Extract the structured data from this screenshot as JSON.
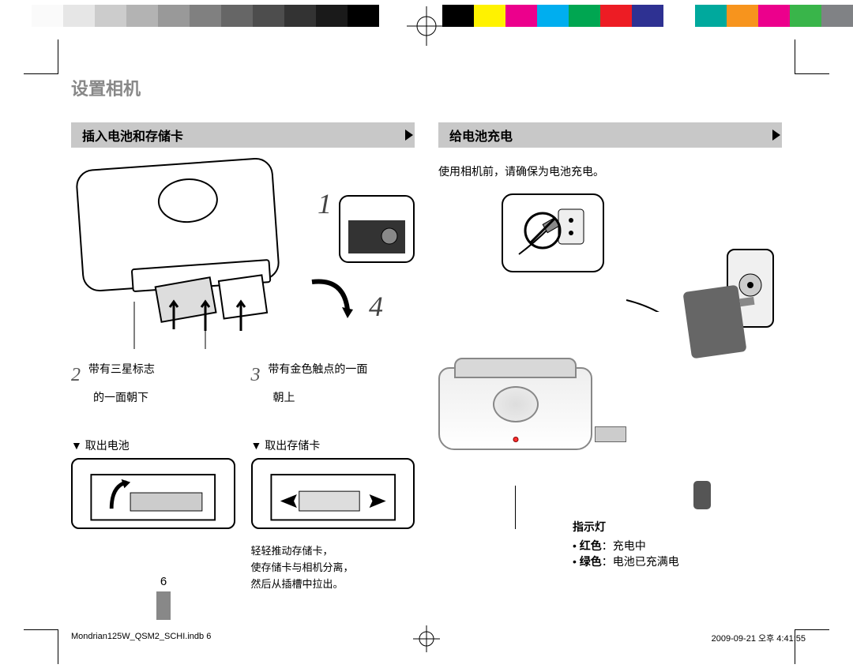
{
  "colorbar": {
    "grayscale": [
      "#ffffff",
      "#fafafa",
      "#e6e6e6",
      "#cccccc",
      "#b3b3b3",
      "#999999",
      "#808080",
      "#666666",
      "#4d4d4d",
      "#333333",
      "#1a1a1a",
      "#000000",
      "#ffffff"
    ],
    "colors": [
      "#000000",
      "#fff200",
      "#ec008c",
      "#00aeef",
      "#00a651",
      "#ed1c24",
      "#2e3192",
      "#ffffff",
      "#00a99d",
      "#f7941d",
      "#ec008c",
      "#39b54a",
      "#808285"
    ]
  },
  "page": {
    "title": "设置相机",
    "number": "6"
  },
  "left": {
    "heading": "插入电池和存储卡",
    "num1": "1",
    "num4": "4",
    "step2_num": "2",
    "step2_text1": "带有三星标志",
    "step2_text2": "的一面朝下",
    "step3_num": "3",
    "step3_text1": "带有金色触点的一面",
    "step3_text2": "朝上",
    "sub1_title": "▼ 取出电池",
    "sub2_title": "▼ 取出存储卡",
    "sub2_caption1": "轻轻推动存储卡，",
    "sub2_caption2": "使存储卡与相机分离，",
    "sub2_caption3": "然后从插槽中拉出。"
  },
  "right": {
    "heading": "给电池充电",
    "intro": "使用相机前，请确保为电池充电。",
    "led_label": "指示灯",
    "legend_title": "指示灯",
    "legend_red_key": "红色",
    "legend_red_val": "：充电中",
    "legend_green_key": "绿色",
    "legend_green_val": "：电池已充满电"
  },
  "footer": {
    "left": "Mondrian125W_QSM2_SCHI.indb   6",
    "right": "2009-09-21   오후 4:41:55"
  }
}
